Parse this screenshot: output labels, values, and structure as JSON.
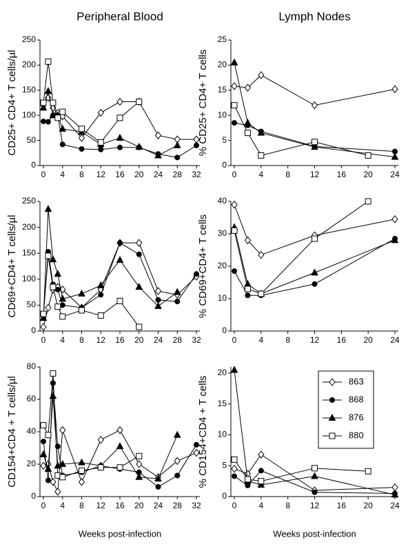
{
  "chart_data": [
    {
      "type": "line",
      "title": "Peripheral Blood",
      "ylabel": "CD25+ CD4+ T cells/µl",
      "xlim": [
        0,
        32
      ],
      "ylim": [
        0,
        250
      ],
      "xticks": [
        0,
        4,
        8,
        12,
        16,
        20,
        24,
        28,
        32
      ],
      "yticks": [
        0,
        50,
        100,
        150,
        200,
        250
      ],
      "series": [
        {
          "marker": "diamond",
          "filled": false,
          "x": [
            0,
            1,
            2,
            3,
            4,
            8,
            12,
            16,
            20,
            24,
            28,
            32
          ],
          "values": [
            120,
            135,
            115,
            105,
            98,
            55,
            105,
            127,
            127,
            60,
            52,
            52
          ]
        },
        {
          "marker": "circle",
          "filled": true,
          "x": [
            0,
            1,
            2,
            3,
            4,
            8,
            12,
            16,
            20,
            24,
            28,
            32
          ],
          "values": [
            88,
            87,
            100,
            100,
            42,
            33,
            32,
            36,
            36,
            23,
            16,
            40
          ]
        },
        {
          "marker": "triangle",
          "filled": true,
          "x": [
            0,
            1,
            2,
            3,
            4,
            8,
            12,
            16,
            20,
            24,
            28
          ],
          "values": [
            115,
            148,
            100,
            100,
            73,
            67,
            42,
            55,
            37,
            20,
            40
          ]
        },
        {
          "marker": "square",
          "filled": false,
          "x": [
            0,
            1,
            2,
            3,
            4,
            8,
            12,
            16,
            20
          ],
          "values": [
            125,
            207,
            125,
            95,
            107,
            73,
            46,
            95,
            127
          ]
        }
      ]
    },
    {
      "type": "line",
      "title": "Lymph Nodes",
      "ylabel": "% CD25+ CD4+ T cells",
      "xlim": [
        0,
        24
      ],
      "ylim": [
        0,
        25
      ],
      "xticks": [
        0,
        4,
        8,
        12,
        16,
        20,
        24
      ],
      "yticks": [
        0,
        5,
        10,
        15,
        20,
        25
      ],
      "series": [
        {
          "marker": "diamond",
          "filled": false,
          "x": [
            0,
            2,
            4,
            12,
            24
          ],
          "values": [
            15.8,
            15.5,
            18,
            12,
            15.2
          ]
        },
        {
          "marker": "circle",
          "filled": true,
          "x": [
            0,
            2,
            4,
            12,
            24
          ],
          "values": [
            8.5,
            8,
            6.8,
            3.8,
            2.8
          ]
        },
        {
          "marker": "triangle",
          "filled": true,
          "x": [
            0,
            2,
            4,
            12,
            24
          ],
          "values": [
            20.5,
            8.5,
            6.5,
            3.7,
            1.7
          ]
        },
        {
          "marker": "square",
          "filled": false,
          "x": [
            0,
            2,
            4,
            12,
            20
          ],
          "values": [
            12,
            6.5,
            2,
            4.7,
            2
          ]
        }
      ]
    },
    {
      "type": "line",
      "ylabel": "CD69+CD4+ T cells/µl",
      "xlim": [
        0,
        32
      ],
      "ylim": [
        0,
        250
      ],
      "xticks": [
        0,
        4,
        8,
        12,
        16,
        20,
        24,
        28,
        32
      ],
      "yticks": [
        0,
        50,
        100,
        150,
        200,
        250
      ],
      "series": [
        {
          "marker": "diamond",
          "filled": false,
          "x": [
            0,
            1,
            2,
            3,
            4,
            8,
            12,
            16,
            20,
            24,
            28,
            32
          ],
          "values": [
            8,
            45,
            80,
            85,
            80,
            45,
            80,
            170,
            170,
            77,
            70,
            105
          ]
        },
        {
          "marker": "circle",
          "filled": true,
          "x": [
            0,
            1,
            2,
            3,
            4,
            8,
            12,
            16,
            20,
            24,
            28,
            32
          ],
          "values": [
            30,
            153,
            90,
            80,
            50,
            45,
            70,
            170,
            148,
            60,
            57,
            110
          ]
        },
        {
          "marker": "triangle",
          "filled": true,
          "x": [
            0,
            1,
            2,
            3,
            4,
            8,
            12,
            16,
            20,
            24,
            28
          ],
          "values": [
            25,
            235,
            138,
            110,
            62,
            72,
            88,
            137,
            85,
            48,
            75
          ]
        },
        {
          "marker": "square",
          "filled": false,
          "x": [
            0,
            1,
            2,
            3,
            4,
            8,
            12,
            16,
            20
          ],
          "values": [
            33,
            145,
            85,
            47,
            28,
            40,
            30,
            58,
            8
          ]
        }
      ]
    },
    {
      "type": "line",
      "ylabel": "% CD69+CD4+ T cells",
      "xlim": [
        0,
        24
      ],
      "ylim": [
        0,
        40
      ],
      "xticks": [
        0,
        4,
        8,
        12,
        16,
        20,
        24
      ],
      "yticks": [
        0,
        10,
        20,
        30,
        40
      ],
      "series": [
        {
          "marker": "diamond",
          "filled": false,
          "x": [
            0,
            2,
            4,
            12,
            24
          ],
          "values": [
            39,
            28,
            23.5,
            29.5,
            34.5
          ]
        },
        {
          "marker": "circle",
          "filled": true,
          "x": [
            0,
            2,
            4,
            12,
            24
          ],
          "values": [
            18.5,
            11,
            11,
            14.5,
            28.5
          ]
        },
        {
          "marker": "triangle",
          "filled": true,
          "x": [
            0,
            2,
            4,
            12,
            24
          ],
          "values": [
            32,
            14.5,
            11.5,
            18,
            28
          ]
        },
        {
          "marker": "square",
          "filled": false,
          "x": [
            0,
            2,
            4,
            12,
            20
          ],
          "values": [
            31,
            13,
            11.5,
            28.5,
            40
          ]
        }
      ]
    },
    {
      "type": "line",
      "ylabel": "CD154+CD4 + T cells/µl",
      "xlabel": "Weeks post-infection",
      "xlim": [
        0,
        32
      ],
      "ylim": [
        0,
        80
      ],
      "xticks": [
        0,
        4,
        8,
        12,
        16,
        20,
        24,
        28,
        32
      ],
      "yticks": [
        0,
        20,
        40,
        60,
        80
      ],
      "series": [
        {
          "marker": "diamond",
          "filled": false,
          "x": [
            0,
            1,
            2,
            3,
            4,
            8,
            12,
            16,
            20,
            24,
            28,
            32
          ],
          "values": [
            19,
            20,
            9,
            3,
            41,
            9,
            35,
            41,
            20,
            12,
            22,
            27
          ]
        },
        {
          "marker": "circle",
          "filled": true,
          "x": [
            0,
            1,
            2,
            3,
            4,
            8,
            12,
            16,
            20,
            24,
            28,
            32
          ],
          "values": [
            34,
            10,
            70,
            31,
            13,
            15,
            19,
            17,
            15,
            6,
            13,
            32
          ]
        },
        {
          "marker": "triangle",
          "filled": true,
          "x": [
            0,
            1,
            2,
            3,
            4,
            8,
            12,
            16,
            20,
            24,
            28
          ],
          "values": [
            26,
            17,
            62,
            19,
            20,
            21,
            19,
            31,
            12,
            11,
            38
          ]
        },
        {
          "marker": "square",
          "filled": false,
          "x": [
            0,
            1,
            2,
            3,
            4,
            8,
            12,
            16,
            20
          ],
          "values": [
            44,
            38,
            76,
            13,
            12,
            16,
            18,
            18,
            25
          ]
        }
      ]
    },
    {
      "type": "line",
      "ylabel": "% CD154+CD4 + T cells",
      "xlabel": "Weeks post-infection",
      "legend": "upper-right",
      "xlim": [
        0,
        24
      ],
      "ylim": [
        0,
        21
      ],
      "xticks": [
        0,
        4,
        8,
        12,
        16,
        20,
        24
      ],
      "yticks": [
        0,
        5,
        10,
        15,
        20
      ],
      "series": [
        {
          "name": "863",
          "marker": "diamond",
          "filled": false,
          "x": [
            0,
            2,
            4,
            12,
            24
          ],
          "values": [
            4.5,
            3.7,
            6.8,
            1,
            1.5
          ]
        },
        {
          "name": "868",
          "marker": "circle",
          "filled": true,
          "x": [
            0,
            2,
            4,
            12,
            24
          ],
          "values": [
            3.3,
            1.8,
            4.2,
            0.7,
            0.5
          ]
        },
        {
          "name": "876",
          "marker": "triangle",
          "filled": true,
          "x": [
            0,
            2,
            4,
            12,
            24
          ],
          "values": [
            20.5,
            2.5,
            1.9,
            3.3,
            0.3
          ]
        },
        {
          "name": "880",
          "marker": "square",
          "filled": false,
          "x": [
            0,
            2,
            4,
            12,
            20
          ],
          "values": [
            6,
            2.8,
            2.5,
            4.6,
            4.1
          ]
        }
      ]
    }
  ]
}
